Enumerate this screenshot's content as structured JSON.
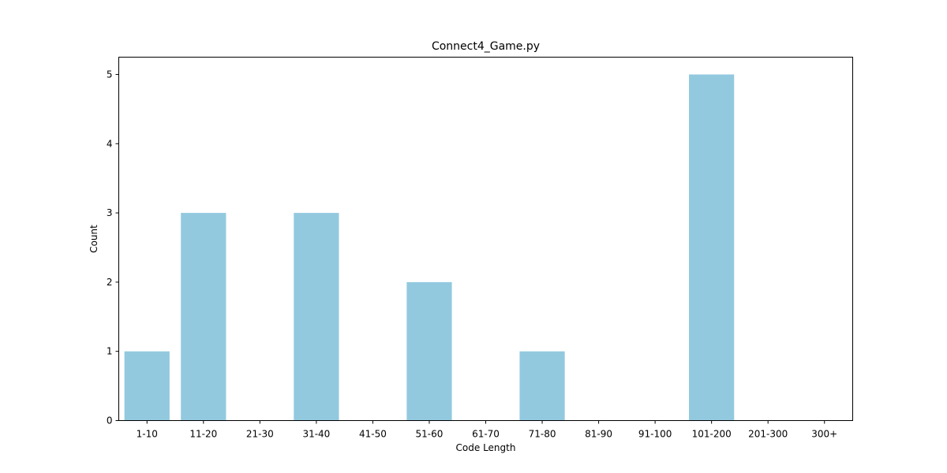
{
  "chart_data": {
    "type": "bar",
    "title": "Connect4_Game.py",
    "xlabel": "Code Length",
    "ylabel": "Count",
    "categories": [
      "1-10",
      "11-20",
      "21-30",
      "31-40",
      "41-50",
      "51-60",
      "61-70",
      "71-80",
      "81-90",
      "91-100",
      "101-200",
      "201-300",
      "300+"
    ],
    "values": [
      1,
      3,
      0,
      3,
      0,
      2,
      0,
      1,
      0,
      0,
      5,
      0,
      0
    ],
    "yticks": [
      0,
      1,
      2,
      3,
      4,
      5
    ],
    "ylim": [
      0,
      5.25
    ],
    "grid": false,
    "legend": "none",
    "bar_color": "#92c9df",
    "axes_color": "#000000"
  }
}
